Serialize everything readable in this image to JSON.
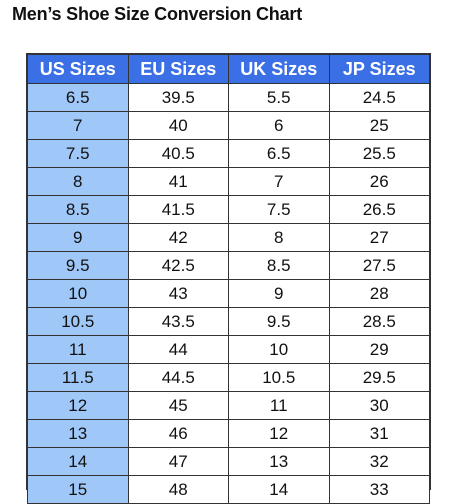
{
  "title": "Men’s Shoe Size Conversion Chart",
  "colors": {
    "header_bg": "#3a6fe6",
    "us_column_bg": "#9fc8f8",
    "header_text": "#ffffff"
  },
  "chart_data": {
    "type": "table",
    "columns": [
      "US Sizes",
      "EU Sizes",
      "UK Sizes",
      "JP Sizes"
    ],
    "rows": [
      [
        "6.5",
        "39.5",
        "5.5",
        "24.5"
      ],
      [
        "7",
        "40",
        "6",
        "25"
      ],
      [
        "7.5",
        "40.5",
        "6.5",
        "25.5"
      ],
      [
        "8",
        "41",
        "7",
        "26"
      ],
      [
        "8.5",
        "41.5",
        "7.5",
        "26.5"
      ],
      [
        "9",
        "42",
        "8",
        "27"
      ],
      [
        "9.5",
        "42.5",
        "8.5",
        "27.5"
      ],
      [
        "10",
        "43",
        "9",
        "28"
      ],
      [
        "10.5",
        "43.5",
        "9.5",
        "28.5"
      ],
      [
        "11",
        "44",
        "10",
        "29"
      ],
      [
        "11.5",
        "44.5",
        "10.5",
        "29.5"
      ],
      [
        "12",
        "45",
        "11",
        "30"
      ],
      [
        "13",
        "46",
        "12",
        "31"
      ],
      [
        "14",
        "47",
        "13",
        "32"
      ],
      [
        "15",
        "48",
        "14",
        "33"
      ]
    ]
  }
}
